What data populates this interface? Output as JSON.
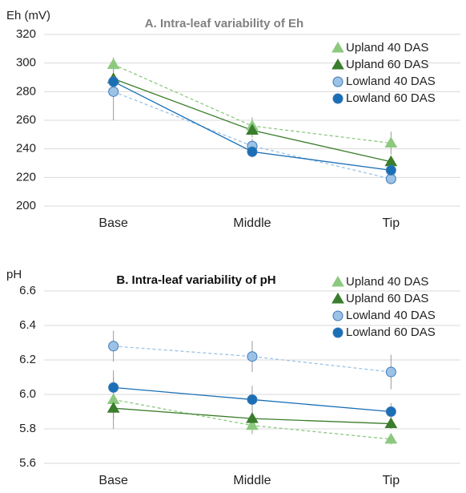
{
  "chart_data": [
    {
      "type": "line",
      "title": "A. Intra-leaf variability of Eh",
      "ylabel": "Eh (mV)",
      "categories": [
        "Base",
        "Middle",
        "Tip"
      ],
      "series": [
        {
          "name": "Upland 40 DAS",
          "color": "#8cc97f",
          "marker": "triangle",
          "dashed": true,
          "values": [
            299,
            256,
            244
          ],
          "errors": [
            5,
            6,
            8
          ]
        },
        {
          "name": "Upland 60 DAS",
          "color": "#3a7d2c",
          "marker": "triangle",
          "dashed": false,
          "values": [
            289,
            253,
            231
          ],
          "errors": [
            4,
            5,
            4
          ]
        },
        {
          "name": "Lowland 40 DAS",
          "color": "#9cc3e6",
          "marker": "circle",
          "dashed": true,
          "values": [
            280,
            242,
            219
          ],
          "errors": [
            20,
            5,
            3
          ]
        },
        {
          "name": "Lowland 60 DAS",
          "color": "#1a6fb5",
          "marker": "circle",
          "dashed": false,
          "values": [
            287,
            238,
            225
          ],
          "errors": [
            4,
            4,
            4
          ]
        }
      ],
      "ylim": [
        200,
        320
      ],
      "yticks": [
        200,
        220,
        240,
        260,
        280,
        300,
        320
      ],
      "grid": true,
      "legend": "upper right"
    },
    {
      "type": "line",
      "title": "B. Intra-leaf variability of pH",
      "ylabel": "pH",
      "categories": [
        "Base",
        "Middle",
        "Tip"
      ],
      "series": [
        {
          "name": "Upland 40 DAS",
          "color": "#8cc97f",
          "marker": "triangle",
          "dashed": true,
          "values": [
            5.97,
            5.82,
            5.74
          ],
          "errors": [
            0.17,
            0.05,
            0.03
          ]
        },
        {
          "name": "Upland 60 DAS",
          "color": "#3a7d2c",
          "marker": "triangle",
          "dashed": false,
          "values": [
            5.92,
            5.86,
            5.83
          ],
          "errors": [
            0.06,
            0.04,
            0.03
          ]
        },
        {
          "name": "Lowland 40 DAS",
          "color": "#9cc3e6",
          "marker": "circle",
          "dashed": true,
          "values": [
            6.28,
            6.22,
            6.13
          ],
          "errors": [
            0.09,
            0.09,
            0.1
          ]
        },
        {
          "name": "Lowland 60 DAS",
          "color": "#1a6fb5",
          "marker": "circle",
          "dashed": false,
          "values": [
            6.04,
            5.97,
            5.9
          ],
          "errors": [
            0.06,
            0.08,
            0.05
          ]
        }
      ],
      "ylim": [
        5.6,
        6.6
      ],
      "yticks": [
        5.6,
        5.8,
        {
          "value": 6,
          "label": "6.0"
        },
        6.2,
        6.4,
        6.6
      ],
      "grid": true,
      "legend": "upper right"
    }
  ]
}
